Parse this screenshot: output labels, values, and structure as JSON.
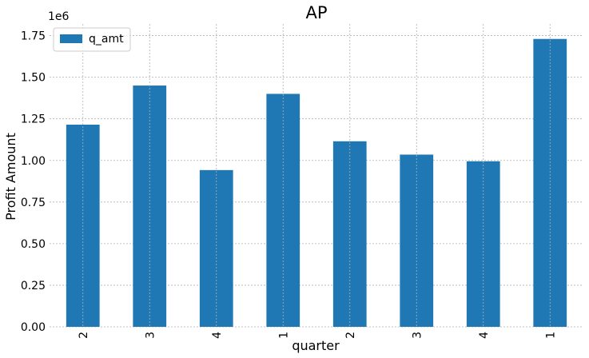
{
  "chart_data": {
    "type": "bar",
    "title": "AP",
    "xlabel": "quarter",
    "ylabel": "Profit Amount",
    "y_offset_label": "1e6",
    "categories": [
      "2",
      "3",
      "4",
      "1",
      "2",
      "3",
      "4",
      "1"
    ],
    "series": [
      {
        "name": "q_amt",
        "color": "#1f77b4",
        "values": [
          1215000,
          1450000,
          942000,
          1400000,
          1115000,
          1035000,
          995000,
          1730000
        ]
      }
    ],
    "ylim": [
      0,
      1820000
    ],
    "yticks": [
      0,
      250000,
      500000,
      750000,
      1000000,
      1250000,
      1500000,
      1750000
    ],
    "ytick_labels": [
      "0.00",
      "0.25",
      "0.50",
      "0.75",
      "1.00",
      "1.25",
      "1.50",
      "1.75"
    ],
    "grid": true,
    "legend_position": "top-left"
  }
}
